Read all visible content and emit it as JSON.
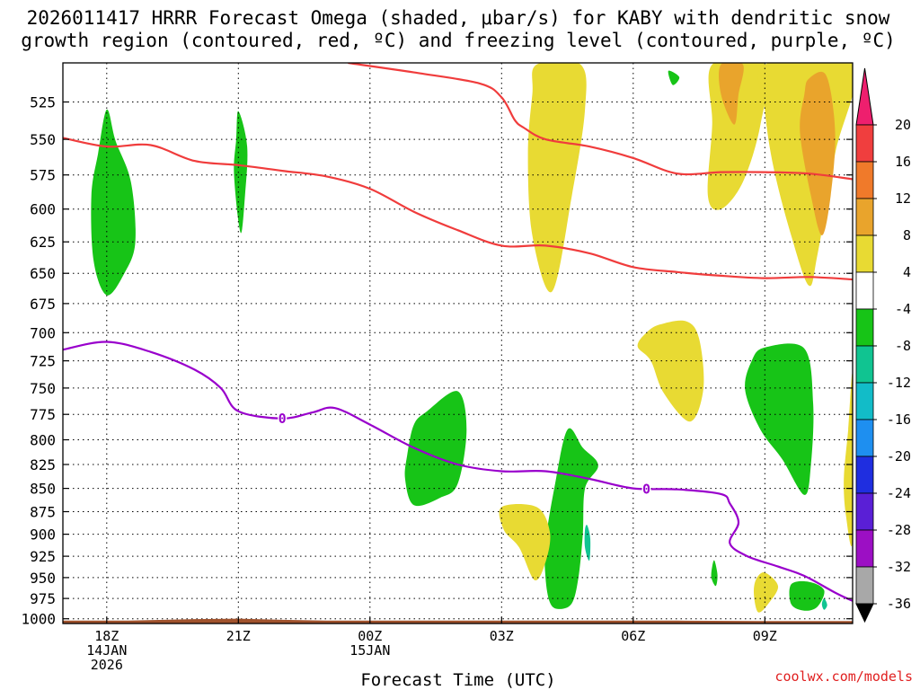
{
  "title": {
    "line1": "2026011417 HRRR Forecast Omega (shaded, μbar/s) for KABY with dendritic snow",
    "line2": "growth region (contoured, red, ºC) and freezing level (contoured, purple, ºC)"
  },
  "credit": "coolwx.com/models",
  "chart_data": {
    "type": "contour-cross-section",
    "xlabel": "Forecast Time (UTC)",
    "x_ticks": [
      {
        "hour": 1,
        "label": "18Z",
        "sub1": "14JAN",
        "sub2": "2026"
      },
      {
        "hour": 4,
        "label": "21Z",
        "sub1": "",
        "sub2": ""
      },
      {
        "hour": 7,
        "label": "00Z",
        "sub1": "15JAN",
        "sub2": ""
      },
      {
        "hour": 10,
        "label": "03Z",
        "sub1": "",
        "sub2": ""
      },
      {
        "hour": 13,
        "label": "06Z",
        "sub1": "",
        "sub2": ""
      },
      {
        "hour": 16,
        "label": "09Z",
        "sub1": "",
        "sub2": ""
      }
    ],
    "xlim": [
      0,
      18
    ],
    "y_ticks": [
      525,
      550,
      575,
      600,
      625,
      650,
      675,
      700,
      725,
      750,
      775,
      800,
      825,
      850,
      875,
      900,
      925,
      950,
      975,
      1000
    ],
    "ylim_hPa": [
      1006,
      500
    ],
    "y_scale": "log-pressure",
    "grid": "dotted",
    "colorbar": {
      "labels": [
        "20",
        "16",
        "12",
        "8",
        "4",
        "-4",
        "-8",
        "-12",
        "-16",
        "-20",
        "-24",
        "-28",
        "-32",
        "-36"
      ],
      "colors": [
        "#ee1f6e",
        "#f03e3e",
        "#f07a2a",
        "#e9a42c",
        "#e8da33",
        "#ffffff",
        "#17c417",
        "#10c491",
        "#12bcc8",
        "#1e8ff0",
        "#1f2ee0",
        "#5a1fd6",
        "#9c0fc4",
        "#a8a8a8",
        "#000000"
      ]
    },
    "dendritic_contours": [
      {
        "name": "upper",
        "color": "#f03c3c",
        "points": [
          [
            6.5,
            500
          ],
          [
            8,
            506
          ],
          [
            9.5,
            513
          ],
          [
            10,
            522
          ],
          [
            10.3,
            537
          ],
          [
            10.5,
            542
          ],
          [
            11,
            550
          ],
          [
            12,
            555
          ],
          [
            13,
            563
          ],
          [
            14,
            574
          ],
          [
            15,
            573
          ],
          [
            16,
            573
          ],
          [
            17,
            574
          ],
          [
            18,
            578
          ]
        ]
      },
      {
        "name": "lower",
        "color": "#f03c3c",
        "points": [
          [
            0,
            549
          ],
          [
            1,
            555
          ],
          [
            2,
            554
          ],
          [
            3,
            565
          ],
          [
            4,
            568
          ],
          [
            5,
            572
          ],
          [
            6,
            576
          ],
          [
            7,
            585
          ],
          [
            8,
            602
          ],
          [
            9,
            616
          ],
          [
            10,
            628
          ],
          [
            11,
            628
          ],
          [
            12,
            634
          ],
          [
            13,
            645
          ],
          [
            14,
            649
          ],
          [
            15,
            652
          ],
          [
            16,
            654
          ],
          [
            17,
            653
          ],
          [
            18,
            655
          ]
        ]
      }
    ],
    "freezing_level": {
      "label": "0",
      "color": "#9900cc",
      "points": [
        [
          0,
          715
        ],
        [
          1,
          708
        ],
        [
          2,
          717
        ],
        [
          3,
          733
        ],
        [
          3.6,
          750
        ],
        [
          4,
          772
        ],
        [
          5,
          779
        ],
        [
          5.7,
          773
        ],
        [
          6.2,
          769
        ],
        [
          7,
          785
        ],
        [
          8,
          808
        ],
        [
          9,
          825
        ],
        [
          10,
          832
        ],
        [
          11,
          832
        ],
        [
          12,
          840
        ],
        [
          13,
          850
        ],
        [
          14,
          851
        ],
        [
          15,
          856
        ],
        [
          15.2,
          866
        ],
        [
          15.4,
          887
        ],
        [
          15.2,
          910
        ],
        [
          15.6,
          925
        ],
        [
          16.3,
          937
        ],
        [
          16.9,
          948
        ],
        [
          17.6,
          968
        ],
        [
          18,
          978
        ]
      ]
    },
    "omega_regions": [
      {
        "value": "-4",
        "color": "#17c417",
        "points": [
          [
            1,
            530
          ],
          [
            1.2,
            551
          ],
          [
            1.55,
            580
          ],
          [
            1.65,
            625
          ],
          [
            1.4,
            650
          ],
          [
            1,
            668
          ],
          [
            0.7,
            640
          ],
          [
            0.65,
            590
          ],
          [
            0.8,
            560
          ]
        ]
      },
      {
        "value": "-4",
        "color": "#17c417",
        "points": [
          [
            4,
            531
          ],
          [
            4.2,
            555
          ],
          [
            4.15,
            590
          ],
          [
            4.05,
            618
          ],
          [
            3.9,
            575
          ],
          [
            3.95,
            550
          ]
        ]
      },
      {
        "value": "-4",
        "color": "#17c417",
        "points": [
          [
            8,
            785
          ],
          [
            8.3,
            772
          ],
          [
            9,
            753
          ],
          [
            9.2,
            790
          ],
          [
            9,
            845
          ],
          [
            8.6,
            860
          ],
          [
            8,
            868
          ],
          [
            7.8,
            840
          ],
          [
            7.85,
            815
          ]
        ]
      },
      {
        "value": "-4",
        "color": "#17c417",
        "points": [
          [
            11,
            910
          ],
          [
            11.2,
            850
          ],
          [
            11.5,
            790
          ],
          [
            11.85,
            808
          ],
          [
            12.2,
            826
          ],
          [
            11.9,
            850
          ],
          [
            11.85,
            900
          ],
          [
            11.75,
            950
          ],
          [
            11.6,
            981
          ],
          [
            11.3,
            988
          ],
          [
            11.1,
            980
          ],
          [
            11,
            950
          ]
        ]
      },
      {
        "value": "-4",
        "color": "#17c417",
        "points": [
          [
            14.8,
            937
          ],
          [
            14.85,
            930
          ],
          [
            14.92,
            947
          ],
          [
            14.88,
            960
          ],
          [
            14.78,
            950
          ]
        ]
      },
      {
        "value": "-4",
        "color": "#17c417",
        "points": [
          [
            16,
            713
          ],
          [
            16.9,
            714
          ],
          [
            17.1,
            765
          ],
          [
            17.05,
            825
          ],
          [
            16.9,
            857
          ],
          [
            16.4,
            820
          ],
          [
            15.9,
            790
          ],
          [
            15.55,
            752
          ],
          [
            15.7,
            725
          ]
        ]
      },
      {
        "value": "-4",
        "color": "#17c417",
        "points": [
          [
            16.6,
            958
          ],
          [
            17,
            955
          ],
          [
            17.35,
            965
          ],
          [
            17.2,
            985
          ],
          [
            16.9,
            990
          ],
          [
            16.6,
            982
          ]
        ]
      },
      {
        "value": "-4",
        "color": "#17c417",
        "points": [
          [
            13.8,
            505
          ],
          [
            14.05,
            509
          ],
          [
            13.9,
            514
          ]
        ]
      },
      {
        "value": "-8",
        "color": "#10c491",
        "points": [
          [
            11.95,
            890
          ],
          [
            12.02,
            905
          ],
          [
            12,
            930
          ],
          [
            11.9,
            915
          ],
          [
            11.9,
            895
          ]
        ]
      },
      {
        "value": "-8",
        "color": "#10c491",
        "points": [
          [
            17.35,
            975
          ],
          [
            17.42,
            983
          ],
          [
            17.35,
            989
          ],
          [
            17.3,
            982
          ]
        ]
      },
      {
        "value": "4",
        "color": "#e8da33",
        "points": [
          [
            10.8,
            501
          ],
          [
            11.8,
            501
          ],
          [
            11.9,
            530
          ],
          [
            11.6,
            590
          ],
          [
            11.15,
            665
          ],
          [
            10.7,
            620
          ],
          [
            10.6,
            560
          ],
          [
            10.7,
            520
          ]
        ]
      },
      {
        "value": "4",
        "color": "#e8da33",
        "points": [
          [
            14.8,
            501
          ],
          [
            16,
            501
          ],
          [
            15.9,
            540
          ],
          [
            15.5,
            580
          ],
          [
            15,
            600
          ],
          [
            14.7,
            590
          ],
          [
            14.8,
            540
          ]
        ]
      },
      {
        "value": "4",
        "color": "#e8da33",
        "points": [
          [
            16,
            501
          ],
          [
            18,
            501
          ],
          [
            17.6,
            560
          ],
          [
            17.2,
            635
          ],
          [
            17,
            660
          ],
          [
            16.6,
            620
          ],
          [
            16.2,
            570
          ],
          [
            16,
            530
          ]
        ]
      },
      {
        "value": "4",
        "color": "#e8da33",
        "points": [
          [
            13.3,
            700
          ],
          [
            13.6,
            693
          ],
          [
            14.2,
            690
          ],
          [
            14.5,
            705
          ],
          [
            14.6,
            750
          ],
          [
            14.3,
            782
          ],
          [
            13.7,
            755
          ],
          [
            13.4,
            725
          ],
          [
            13.1,
            712
          ]
        ]
      },
      {
        "value": "4",
        "color": "#e8da33",
        "points": [
          [
            10,
            870
          ],
          [
            10.8,
            870
          ],
          [
            11.1,
            898
          ],
          [
            11,
            932
          ],
          [
            10.75,
            953
          ],
          [
            10.4,
            915
          ],
          [
            10.05,
            895
          ]
        ]
      },
      {
        "value": "4",
        "color": "#e8da33",
        "points": [
          [
            15.8,
            952
          ],
          [
            16,
            944
          ],
          [
            16.3,
            960
          ],
          [
            16.1,
            980
          ],
          [
            15.85,
            992
          ],
          [
            15.75,
            970
          ]
        ]
      },
      {
        "value": "4",
        "color": "#e8da33",
        "points": [
          [
            18,
            740
          ],
          [
            17.9,
            790
          ],
          [
            17.8,
            840
          ],
          [
            17.85,
            880
          ],
          [
            18,
            905
          ]
        ]
      },
      {
        "value": "8",
        "color": "#e9a42c",
        "points": [
          [
            15,
            501
          ],
          [
            15.5,
            501
          ],
          [
            15.4,
            520
          ],
          [
            15.3,
            540
          ],
          [
            15,
            520
          ]
        ]
      },
      {
        "value": "8",
        "color": "#e9a42c",
        "points": [
          [
            17,
            510
          ],
          [
            17.4,
            508
          ],
          [
            17.6,
            545
          ],
          [
            17.5,
            590
          ],
          [
            17.3,
            620
          ],
          [
            17.05,
            590
          ],
          [
            16.8,
            545
          ],
          [
            16.9,
            520
          ]
        ]
      }
    ],
    "terrain": {
      "color": "#a0522d",
      "base_hPa": 1006,
      "points": [
        [
          0,
          1003
        ],
        [
          1.5,
          1003
        ],
        [
          3,
          1001
        ],
        [
          4,
          1000.5
        ],
        [
          5,
          1002
        ],
        [
          6,
          1003
        ],
        [
          8,
          1003
        ],
        [
          10,
          1003
        ],
        [
          12,
          1003
        ],
        [
          14,
          1003
        ],
        [
          16,
          1003.5
        ],
        [
          18,
          1003.5
        ]
      ]
    }
  }
}
